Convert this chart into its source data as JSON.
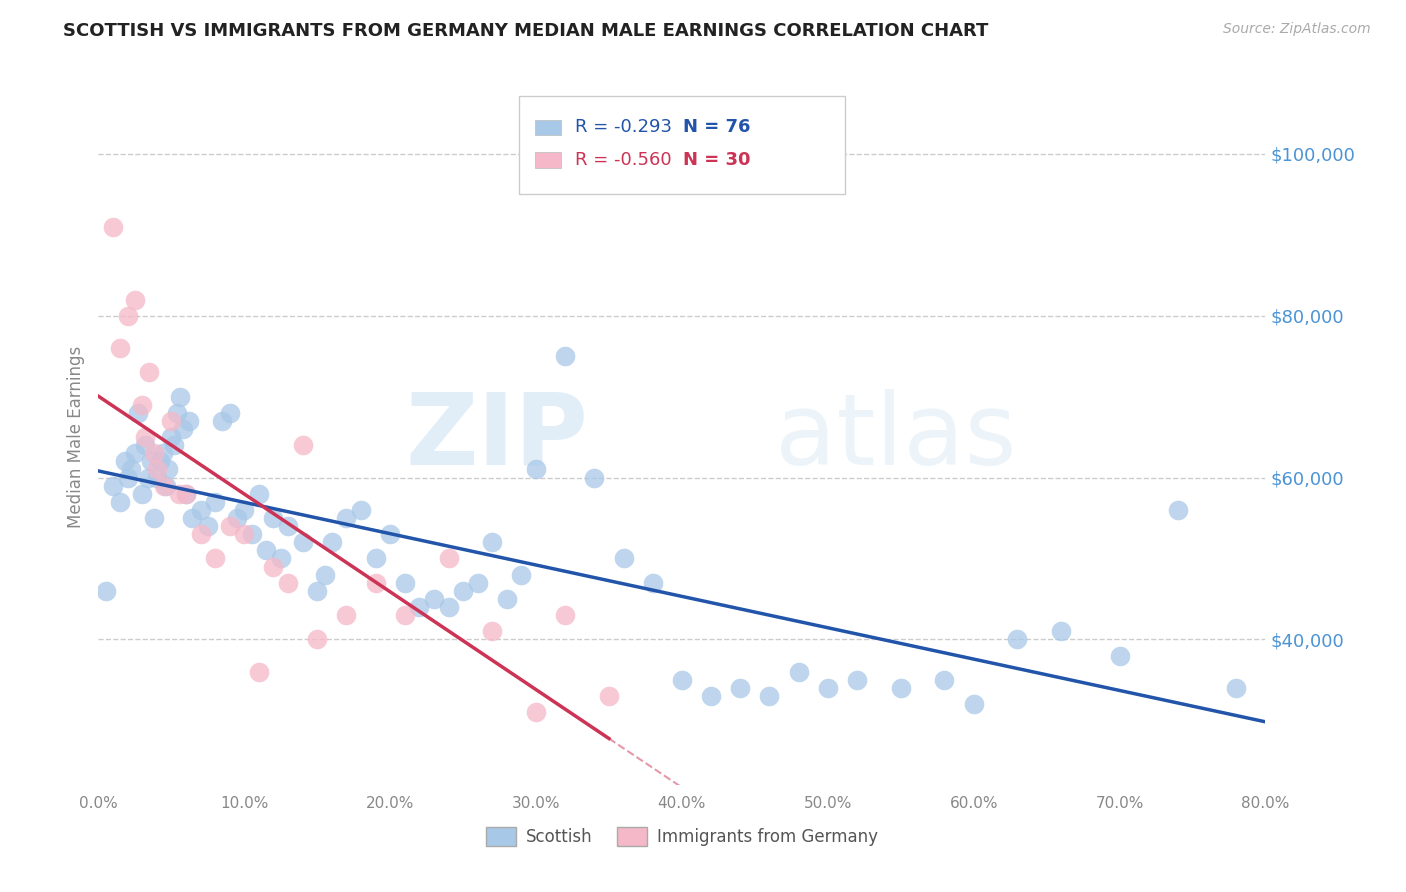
{
  "title": "SCOTTISH VS IMMIGRANTS FROM GERMANY MEDIAN MALE EARNINGS CORRELATION CHART",
  "source": "Source: ZipAtlas.com",
  "ylabel": "Median Male Earnings",
  "right_ytick_labels": [
    "$100,000",
    "$80,000",
    "$60,000",
    "$40,000"
  ],
  "right_ytick_values": [
    100000,
    80000,
    60000,
    40000
  ],
  "ylim": [
    22000,
    108000
  ],
  "xlim": [
    0.0,
    0.8
  ],
  "blue_R": "-0.293",
  "blue_N": "76",
  "pink_R": "-0.560",
  "pink_N": "30",
  "blue_color": "#a8c8e8",
  "pink_color": "#f5b8c8",
  "blue_line_color": "#2255aa",
  "pink_line_color": "#cc3355",
  "watermark_zip": "ZIP",
  "watermark_atlas": "atlas",
  "legend_label_blue": "Scottish",
  "legend_label_pink": "Immigrants from Germany",
  "blue_scatter_x": [
    0.005,
    0.01,
    0.015,
    0.018,
    0.02,
    0.022,
    0.025,
    0.027,
    0.03,
    0.032,
    0.034,
    0.036,
    0.038,
    0.04,
    0.042,
    0.044,
    0.046,
    0.048,
    0.05,
    0.052,
    0.054,
    0.056,
    0.058,
    0.06,
    0.062,
    0.064,
    0.07,
    0.075,
    0.08,
    0.085,
    0.09,
    0.095,
    0.1,
    0.105,
    0.11,
    0.115,
    0.12,
    0.125,
    0.13,
    0.14,
    0.15,
    0.155,
    0.16,
    0.17,
    0.18,
    0.19,
    0.2,
    0.21,
    0.22,
    0.23,
    0.24,
    0.25,
    0.26,
    0.27,
    0.28,
    0.29,
    0.3,
    0.32,
    0.34,
    0.36,
    0.38,
    0.4,
    0.42,
    0.44,
    0.46,
    0.48,
    0.5,
    0.52,
    0.55,
    0.58,
    0.6,
    0.63,
    0.66,
    0.7,
    0.74,
    0.78
  ],
  "blue_scatter_y": [
    46000,
    59000,
    57000,
    62000,
    60000,
    61000,
    63000,
    68000,
    58000,
    64000,
    60000,
    62000,
    55000,
    60000,
    62000,
    63000,
    59000,
    61000,
    65000,
    64000,
    68000,
    70000,
    66000,
    58000,
    67000,
    55000,
    56000,
    54000,
    57000,
    67000,
    68000,
    55000,
    56000,
    53000,
    58000,
    51000,
    55000,
    50000,
    54000,
    52000,
    46000,
    48000,
    52000,
    55000,
    56000,
    50000,
    53000,
    47000,
    44000,
    45000,
    44000,
    46000,
    47000,
    52000,
    45000,
    48000,
    61000,
    75000,
    60000,
    50000,
    47000,
    35000,
    33000,
    34000,
    33000,
    36000,
    34000,
    35000,
    34000,
    35000,
    32000,
    40000,
    41000,
    38000,
    56000,
    34000
  ],
  "pink_scatter_x": [
    0.01,
    0.015,
    0.02,
    0.025,
    0.03,
    0.032,
    0.035,
    0.038,
    0.04,
    0.045,
    0.05,
    0.055,
    0.06,
    0.07,
    0.08,
    0.09,
    0.1,
    0.11,
    0.12,
    0.13,
    0.14,
    0.15,
    0.17,
    0.19,
    0.21,
    0.24,
    0.27,
    0.3,
    0.32,
    0.35
  ],
  "pink_scatter_y": [
    91000,
    76000,
    80000,
    82000,
    69000,
    65000,
    73000,
    63000,
    61000,
    59000,
    67000,
    58000,
    58000,
    53000,
    50000,
    54000,
    53000,
    36000,
    49000,
    47000,
    64000,
    40000,
    43000,
    47000,
    43000,
    50000,
    41000,
    31000,
    43000,
    33000
  ]
}
